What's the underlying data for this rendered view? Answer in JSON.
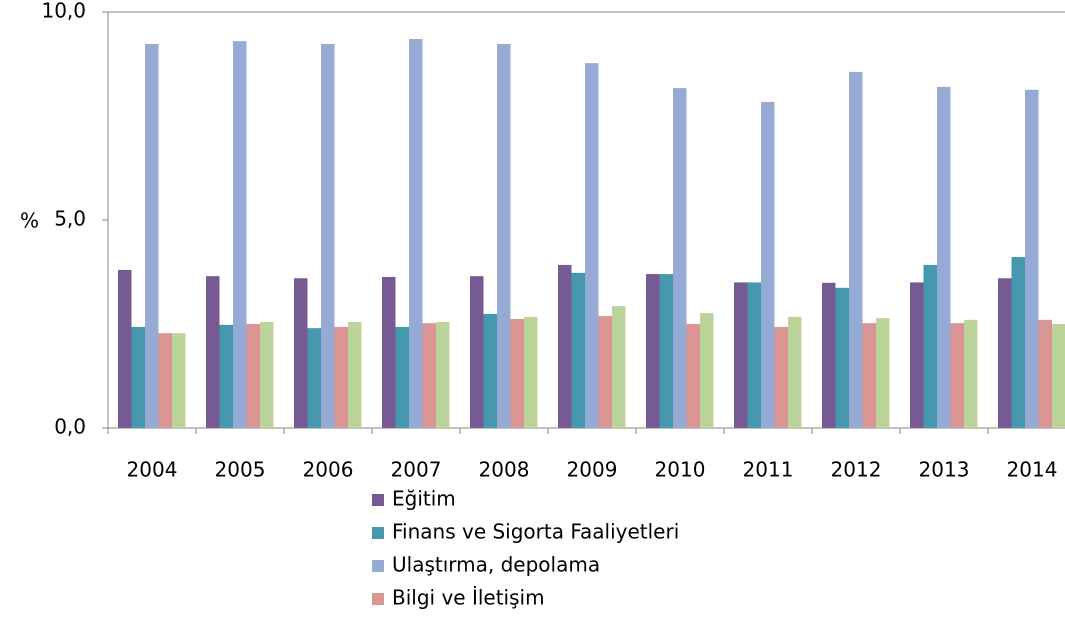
{
  "chart_data": {
    "type": "bar",
    "y_label": "%",
    "categories": [
      "2004",
      "2005",
      "2006",
      "2007",
      "2008",
      "2009",
      "2010",
      "2011",
      "2012",
      "2013",
      "2014"
    ],
    "series": [
      {
        "name": "Eğitim",
        "color": "#775a93",
        "values": [
          3.8,
          3.65,
          3.6,
          3.63,
          3.65,
          3.92,
          3.7,
          3.5,
          3.49,
          3.5,
          3.6
        ]
      },
      {
        "name": "Finans ve Sigorta Faaliyetleri",
        "color": "#4698ae",
        "values": [
          2.43,
          2.48,
          2.4,
          2.43,
          2.74,
          3.73,
          3.7,
          3.5,
          3.37,
          3.92,
          4.11
        ]
      },
      {
        "name": "Ulaştırma, depolama",
        "color": "#95abd6",
        "values": [
          9.23,
          9.3,
          9.23,
          9.35,
          9.23,
          8.77,
          8.17,
          7.84,
          8.56,
          8.2,
          8.13
        ]
      },
      {
        "name": "Bilgi ve İletişim",
        "color": "#d99694",
        "values": [
          2.28,
          2.5,
          2.43,
          2.52,
          2.62,
          2.69,
          2.5,
          2.43,
          2.52,
          2.52,
          2.6
        ]
      },
      {
        "color": "#bcd39a",
        "values": [
          2.28,
          2.55,
          2.55,
          2.55,
          2.67,
          2.93,
          2.76,
          2.67,
          2.64,
          2.6,
          2.5
        ]
      }
    ],
    "ylim": [
      0,
      10
    ],
    "yticks": [
      {
        "value": 0,
        "label": "0,0"
      },
      {
        "value": 5,
        "label": "5,0"
      },
      {
        "value": 10,
        "label": "10,0"
      }
    ],
    "grid": false
  }
}
